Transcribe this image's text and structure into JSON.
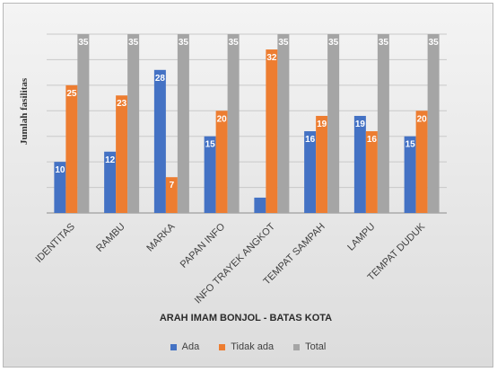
{
  "chart_data": {
    "type": "bar",
    "title": "",
    "xlabel": "ARAH IMAM BONJOL - BATAS KOTA",
    "ylabel": "Jumlah fasilitas",
    "ylim": [
      0,
      35
    ],
    "grid": true,
    "legend_position": "bottom",
    "categories": [
      "IDENTITAS",
      "RAMBU",
      "MARKA",
      "PAPAN INFO",
      "INFO TRAYEK ANGKOT",
      "TEMPAT SAMPAH",
      "LAMPU",
      "TEMPAT DUDUK"
    ],
    "series": [
      {
        "name": "Ada",
        "color": "#4472c4",
        "values": [
          10,
          12,
          28,
          15,
          3,
          16,
          19,
          15
        ],
        "labels": [
          "10",
          "12",
          "28",
          "15",
          "",
          "16",
          "19",
          "15"
        ]
      },
      {
        "name": "Tidak ada",
        "color": "#ed7d31",
        "values": [
          25,
          23,
          7,
          20,
          32,
          19,
          16,
          20
        ],
        "labels": [
          "25",
          "23",
          "7",
          "20",
          "32",
          "19",
          "16",
          "20"
        ]
      },
      {
        "name": "Total",
        "color": "#a5a5a5",
        "values": [
          35,
          35,
          35,
          35,
          35,
          35,
          35,
          35
        ],
        "labels": [
          "35",
          "35",
          "35",
          "35",
          "35",
          "35",
          "35",
          "35"
        ]
      }
    ]
  }
}
